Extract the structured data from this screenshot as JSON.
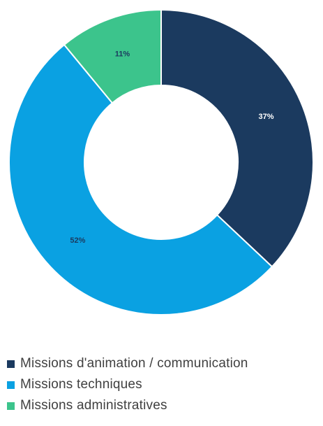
{
  "chart_data": {
    "type": "pie",
    "subtype": "donut",
    "categories": [
      "Missions d'animation / communication",
      "Missions techniques",
      "Missions administratives"
    ],
    "values": [
      37,
      52,
      11
    ],
    "value_labels": [
      "37%",
      "52%",
      "11%"
    ],
    "colors": [
      "#1b3a5f",
      "#0aa1e2",
      "#3cc48c"
    ],
    "label_colors": [
      "#ffffff",
      "#1b3a5f",
      "#1b3a5f"
    ],
    "legend_position": "bottom"
  }
}
